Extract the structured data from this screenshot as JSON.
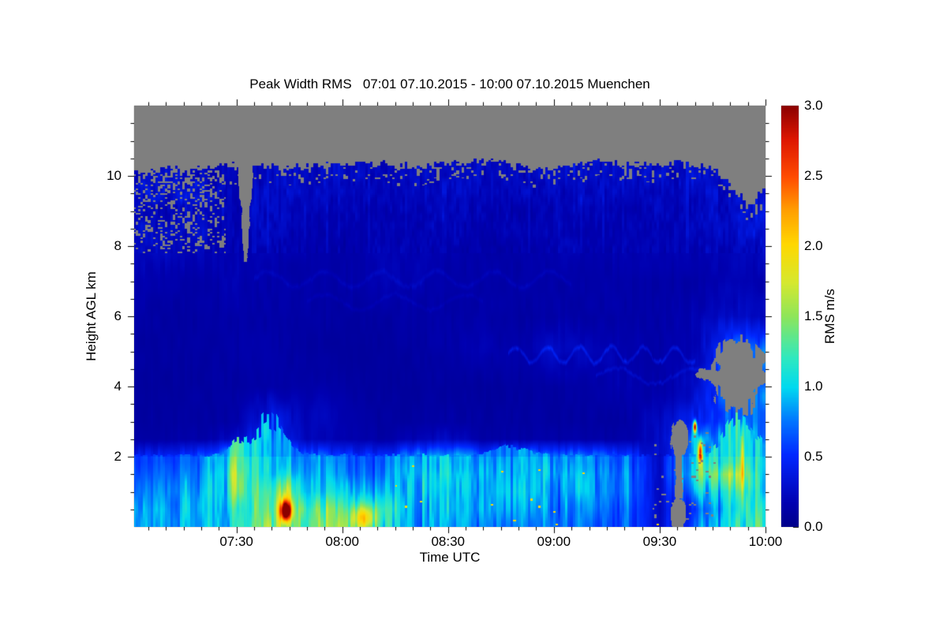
{
  "chart_data": {
    "type": "heatmap",
    "title": "Peak Width RMS   07:01 07.10.2015 - 10:00 07.10.2015 Muenchen",
    "xlabel": "Time UTC",
    "ylabel": "Height AGL km",
    "colorbar_label": "RMS m/s",
    "site": "Muenchen",
    "time_start": "07:01 07.10.2015",
    "time_end": "10:00 07.10.2015",
    "x_range_minutes": [
      421,
      600
    ],
    "ylim_km": [
      0,
      12
    ],
    "value_range": [
      0,
      3
    ],
    "no_data_color": "#7f7f7f",
    "background_color": "#ffffff",
    "x_ticks": [
      {
        "t": 450,
        "label": "07:30"
      },
      {
        "t": 480,
        "label": "08:00"
      },
      {
        "t": 510,
        "label": "08:30"
      },
      {
        "t": 540,
        "label": "09:00"
      },
      {
        "t": 570,
        "label": "09:30"
      },
      {
        "t": 600,
        "label": "10:00"
      }
    ],
    "x_minor_step_min": 5,
    "y_ticks": [
      {
        "km": 2,
        "label": "2"
      },
      {
        "km": 4,
        "label": "4"
      },
      {
        "km": 6,
        "label": "6"
      },
      {
        "km": 8,
        "label": "8"
      },
      {
        "km": 10,
        "label": "10"
      }
    ],
    "y_minor_step_km": 0.5,
    "colorbar_ticks": [
      {
        "v": 0.0,
        "label": "0.0"
      },
      {
        "v": 0.5,
        "label": "0.5"
      },
      {
        "v": 1.0,
        "label": "1.0"
      },
      {
        "v": 1.5,
        "label": "1.5"
      },
      {
        "v": 2.0,
        "label": "2.0"
      },
      {
        "v": 2.5,
        "label": "2.5"
      },
      {
        "v": 3.0,
        "label": "3.0"
      }
    ],
    "colorbar_minor_step": 0.1,
    "colormap": [
      [
        0.0,
        "#00008a"
      ],
      [
        0.055,
        "#0000b0"
      ],
      [
        0.17,
        "#0028ff"
      ],
      [
        0.25,
        "#0075ff"
      ],
      [
        0.33,
        "#00d9f0"
      ],
      [
        0.4,
        "#2fe8c0"
      ],
      [
        0.5,
        "#8fe55a"
      ],
      [
        0.58,
        "#d6e830"
      ],
      [
        0.67,
        "#ffd800"
      ],
      [
        0.75,
        "#ffa000"
      ],
      [
        0.83,
        "#ff4d00"
      ],
      [
        0.92,
        "#dd1700"
      ],
      [
        1.0,
        "#8b0000"
      ]
    ],
    "grid": {
      "times": [
        420,
        430,
        440,
        450,
        460,
        470,
        480,
        490,
        500,
        510,
        520,
        530,
        540,
        550,
        560,
        570,
        580,
        590,
        600
      ],
      "heights": [
        0,
        0.5,
        1,
        1.5,
        2,
        2.5,
        3,
        4,
        5,
        6,
        7,
        8,
        8.5,
        9,
        9.5,
        10,
        10.5,
        11,
        11.5,
        12
      ],
      "values": [
        [
          0.85,
          0.8,
          0.9,
          1.0,
          1.7,
          1.3,
          1.5,
          1.1,
          0.9,
          0.9,
          0.8,
          0.8,
          0.8,
          0.7,
          0.7,
          null,
          0.7,
          1.0,
          1.3
        ],
        [
          0.8,
          0.9,
          0.9,
          1.0,
          1.5,
          1.4,
          1.3,
          1.2,
          0.9,
          1.0,
          0.9,
          0.9,
          0.8,
          0.8,
          0.7,
          null,
          0.6,
          1.0,
          1.2
        ],
        [
          0.7,
          0.8,
          0.9,
          1.2,
          1.3,
          1.0,
          1.0,
          0.9,
          1.0,
          1.0,
          0.9,
          1.0,
          0.9,
          0.9,
          0.8,
          0.3,
          0.9,
          1.1,
          1.0
        ],
        [
          0.6,
          0.7,
          0.8,
          1.3,
          1.0,
          0.9,
          0.8,
          0.7,
          1.0,
          1.1,
          0.9,
          0.9,
          1.0,
          0.9,
          0.8,
          null,
          1.2,
          1.5,
          1.0
        ],
        [
          0.5,
          0.6,
          0.7,
          1.2,
          1.0,
          0.8,
          0.7,
          0.6,
          0.9,
          1.0,
          0.8,
          0.9,
          0.9,
          0.8,
          0.7,
          null,
          1.1,
          1.0,
          1.1
        ],
        [
          0.15,
          0.15,
          0.15,
          0.3,
          0.7,
          0.2,
          0.15,
          0.15,
          0.2,
          0.3,
          0.15,
          0.15,
          0.15,
          0.15,
          0.15,
          null,
          1.0,
          0.9,
          1.0
        ],
        [
          0.12,
          0.12,
          0.12,
          0.15,
          0.5,
          0.15,
          0.12,
          0.12,
          0.12,
          0.15,
          0.12,
          0.12,
          0.12,
          0.12,
          0.12,
          null,
          0.5,
          0.8,
          0.9
        ],
        [
          0.1,
          0.1,
          0.12,
          0.12,
          0.15,
          0.12,
          0.1,
          0.1,
          0.1,
          0.12,
          0.1,
          0.12,
          0.12,
          0.15,
          0.2,
          0.15,
          0.3,
          null,
          null
        ],
        [
          0.12,
          0.12,
          0.12,
          0.15,
          0.15,
          0.12,
          0.1,
          0.1,
          0.12,
          0.15,
          0.2,
          0.15,
          0.3,
          0.25,
          0.2,
          0.15,
          0.2,
          null,
          null
        ],
        [
          0.15,
          0.12,
          0.12,
          0.15,
          0.15,
          0.15,
          0.12,
          0.12,
          0.15,
          0.15,
          0.15,
          0.12,
          0.15,
          0.15,
          0.15,
          0.15,
          0.2,
          0.3,
          0.25
        ],
        [
          0.2,
          0.15,
          0.15,
          0.2,
          0.15,
          0.15,
          0.15,
          0.2,
          0.2,
          0.15,
          0.15,
          0.15,
          0.15,
          0.15,
          0.15,
          0.15,
          0.15,
          0.2,
          0.2
        ],
        [
          0.25,
          0.3,
          0.25,
          null,
          0.2,
          0.2,
          0.15,
          0.2,
          0.2,
          0.2,
          0.15,
          0.15,
          0.2,
          0.2,
          0.2,
          0.2,
          0.2,
          0.25,
          0.3
        ],
        [
          0.3,
          0.3,
          0.3,
          null,
          0.25,
          0.2,
          0.2,
          0.2,
          0.2,
          0.25,
          0.2,
          0.2,
          0.2,
          0.2,
          0.2,
          0.2,
          0.25,
          0.3,
          0.35
        ],
        [
          0.3,
          0.25,
          0.3,
          null,
          0.3,
          0.25,
          0.2,
          0.2,
          0.2,
          0.25,
          0.2,
          0.2,
          0.2,
          0.25,
          0.2,
          0.25,
          0.25,
          0.3,
          0.4
        ],
        [
          0.3,
          0.3,
          0.35,
          null,
          0.3,
          0.3,
          0.25,
          0.25,
          0.25,
          0.3,
          0.25,
          0.25,
          0.25,
          0.25,
          0.25,
          0.25,
          0.3,
          null,
          0.35
        ],
        [
          0.3,
          0.3,
          0.3,
          null,
          0.3,
          0.3,
          0.3,
          0.25,
          0.3,
          0.3,
          0.3,
          0.25,
          0.3,
          0.3,
          0.3,
          0.3,
          0.3,
          null,
          null
        ],
        [
          null,
          null,
          null,
          null,
          null,
          null,
          null,
          null,
          null,
          null,
          null,
          null,
          null,
          null,
          null,
          null,
          null,
          null,
          null
        ],
        [
          null,
          null,
          null,
          null,
          null,
          null,
          null,
          null,
          null,
          null,
          null,
          null,
          null,
          null,
          null,
          null,
          null,
          null,
          null
        ],
        [
          null,
          null,
          null,
          null,
          null,
          null,
          null,
          null,
          null,
          null,
          null,
          null,
          null,
          null,
          null,
          null,
          null,
          null,
          null
        ],
        [
          null,
          null,
          null,
          null,
          null,
          null,
          null,
          null,
          null,
          null,
          null,
          null,
          null,
          null,
          null,
          null,
          null,
          null,
          null
        ]
      ]
    },
    "cloud_top": {
      "t0": 420,
      "dt": 5,
      "values": [
        10.15,
        10.1,
        10.2,
        10.15,
        10.2,
        10.25,
        10.3,
        10.3,
        10.25,
        10.2,
        10.25,
        10.3,
        10.3,
        10.35,
        10.3,
        10.25,
        10.2,
        10.3,
        10.35,
        10.3,
        10.4,
        10.45,
        10.3,
        10.1,
        10.25,
        10.3,
        10.35,
        10.45,
        10.3,
        10.35,
        10.3,
        10.35,
        10.3,
        10.2,
        9.7,
        9.1,
        9.65
      ]
    },
    "mixed_layer_top_km": 2.05,
    "features": {
      "gray_funnel": {
        "t": 452.6,
        "h_bottom": 7.55,
        "h_top": 10.6,
        "halfw_bottom_min": 0.4,
        "halfw_top_min": 2.3
      },
      "gray_blobs": [
        {
          "t": 592.5,
          "h": 4.35,
          "rt": 7.5,
          "rh": 1.0,
          "rag": 1.2
        },
        {
          "t": 584.0,
          "h": 4.35,
          "rt": 3.5,
          "rh": 0.16,
          "rag": 1.5
        },
        {
          "t": 575.5,
          "h": 2.5,
          "rt": 2.6,
          "rh": 0.5,
          "rag": 0.9
        },
        {
          "t": 575.3,
          "h": 0.35,
          "rt": 2.3,
          "rh": 0.5,
          "rag": 0.9
        }
      ],
      "gray_column": {
        "t": 575.4,
        "half_w": 0.9,
        "h1": 0.8,
        "h2": 2.6
      },
      "gray_speckles": [
        {
          "t": [
            421,
            447
          ],
          "h": [
            7.8,
            10.2
          ],
          "p": 0.16
        },
        {
          "t": [
            568,
            586
          ],
          "h": [
            0,
            2.7
          ],
          "p": 0.05
        }
      ],
      "plumes": [
        {
          "t": 459,
          "rt": 6,
          "amp": 1.4
        },
        {
          "t": 450,
          "rt": 2.5,
          "amp": 0.6
        },
        {
          "t": 528,
          "rt": 6,
          "amp": 0.4
        },
        {
          "t": 593,
          "rt": 6,
          "amp": 1.7
        }
      ],
      "wisps": [
        {
          "h": 4.9,
          "t1": 527,
          "t2": 580,
          "amp": 0.28,
          "wav": 9,
          "th": 0.1
        },
        {
          "h": 7.05,
          "t1": 455,
          "t2": 545,
          "amp": 0.1,
          "wav": 16,
          "th": 0.12
        },
        {
          "h": 4.3,
          "t1": 552,
          "t2": 586,
          "amp": 0.16,
          "wav": 22,
          "th": 0.09
        },
        {
          "h": 9.55,
          "t1": 421,
          "t2": 447,
          "amp": 0.15,
          "wav": 8,
          "th": 0.18
        },
        {
          "h": 6.4,
          "t1": 470,
          "t2": 520,
          "amp": 0.08,
          "wav": 20,
          "th": 0.1
        }
      ],
      "hotspots": [
        {
          "t": 464,
          "h": 0.45,
          "st": 1.6,
          "sh": 0.28,
          "amp": 2.2
        },
        {
          "t": 464,
          "h": 0.95,
          "st": 2.6,
          "sh": 0.55,
          "amp": 0.55
        },
        {
          "t": 486,
          "h": 0.25,
          "st": 3.5,
          "sh": 0.32,
          "amp": 0.8
        },
        {
          "t": 449,
          "h": 1.3,
          "st": 1.0,
          "sh": 0.9,
          "amp": 0.45
        },
        {
          "t": 580,
          "h": 2.85,
          "st": 0.45,
          "sh": 0.16,
          "amp": 2.4
        },
        {
          "t": 581.5,
          "h": 2.15,
          "st": 0.6,
          "sh": 0.3,
          "amp": 1.9
        },
        {
          "t": 593.5,
          "h": 1.7,
          "st": 0.55,
          "sh": 0.95,
          "amp": 1.1
        },
        {
          "t": 475,
          "h": 3.2,
          "st": 8,
          "sh": 0.9,
          "amp": 0.1
        }
      ],
      "dots": {
        "t": [
          495,
          572
        ],
        "h": [
          0.05,
          1.9
        ],
        "p": 0.004,
        "value": 2.0
      }
    }
  }
}
